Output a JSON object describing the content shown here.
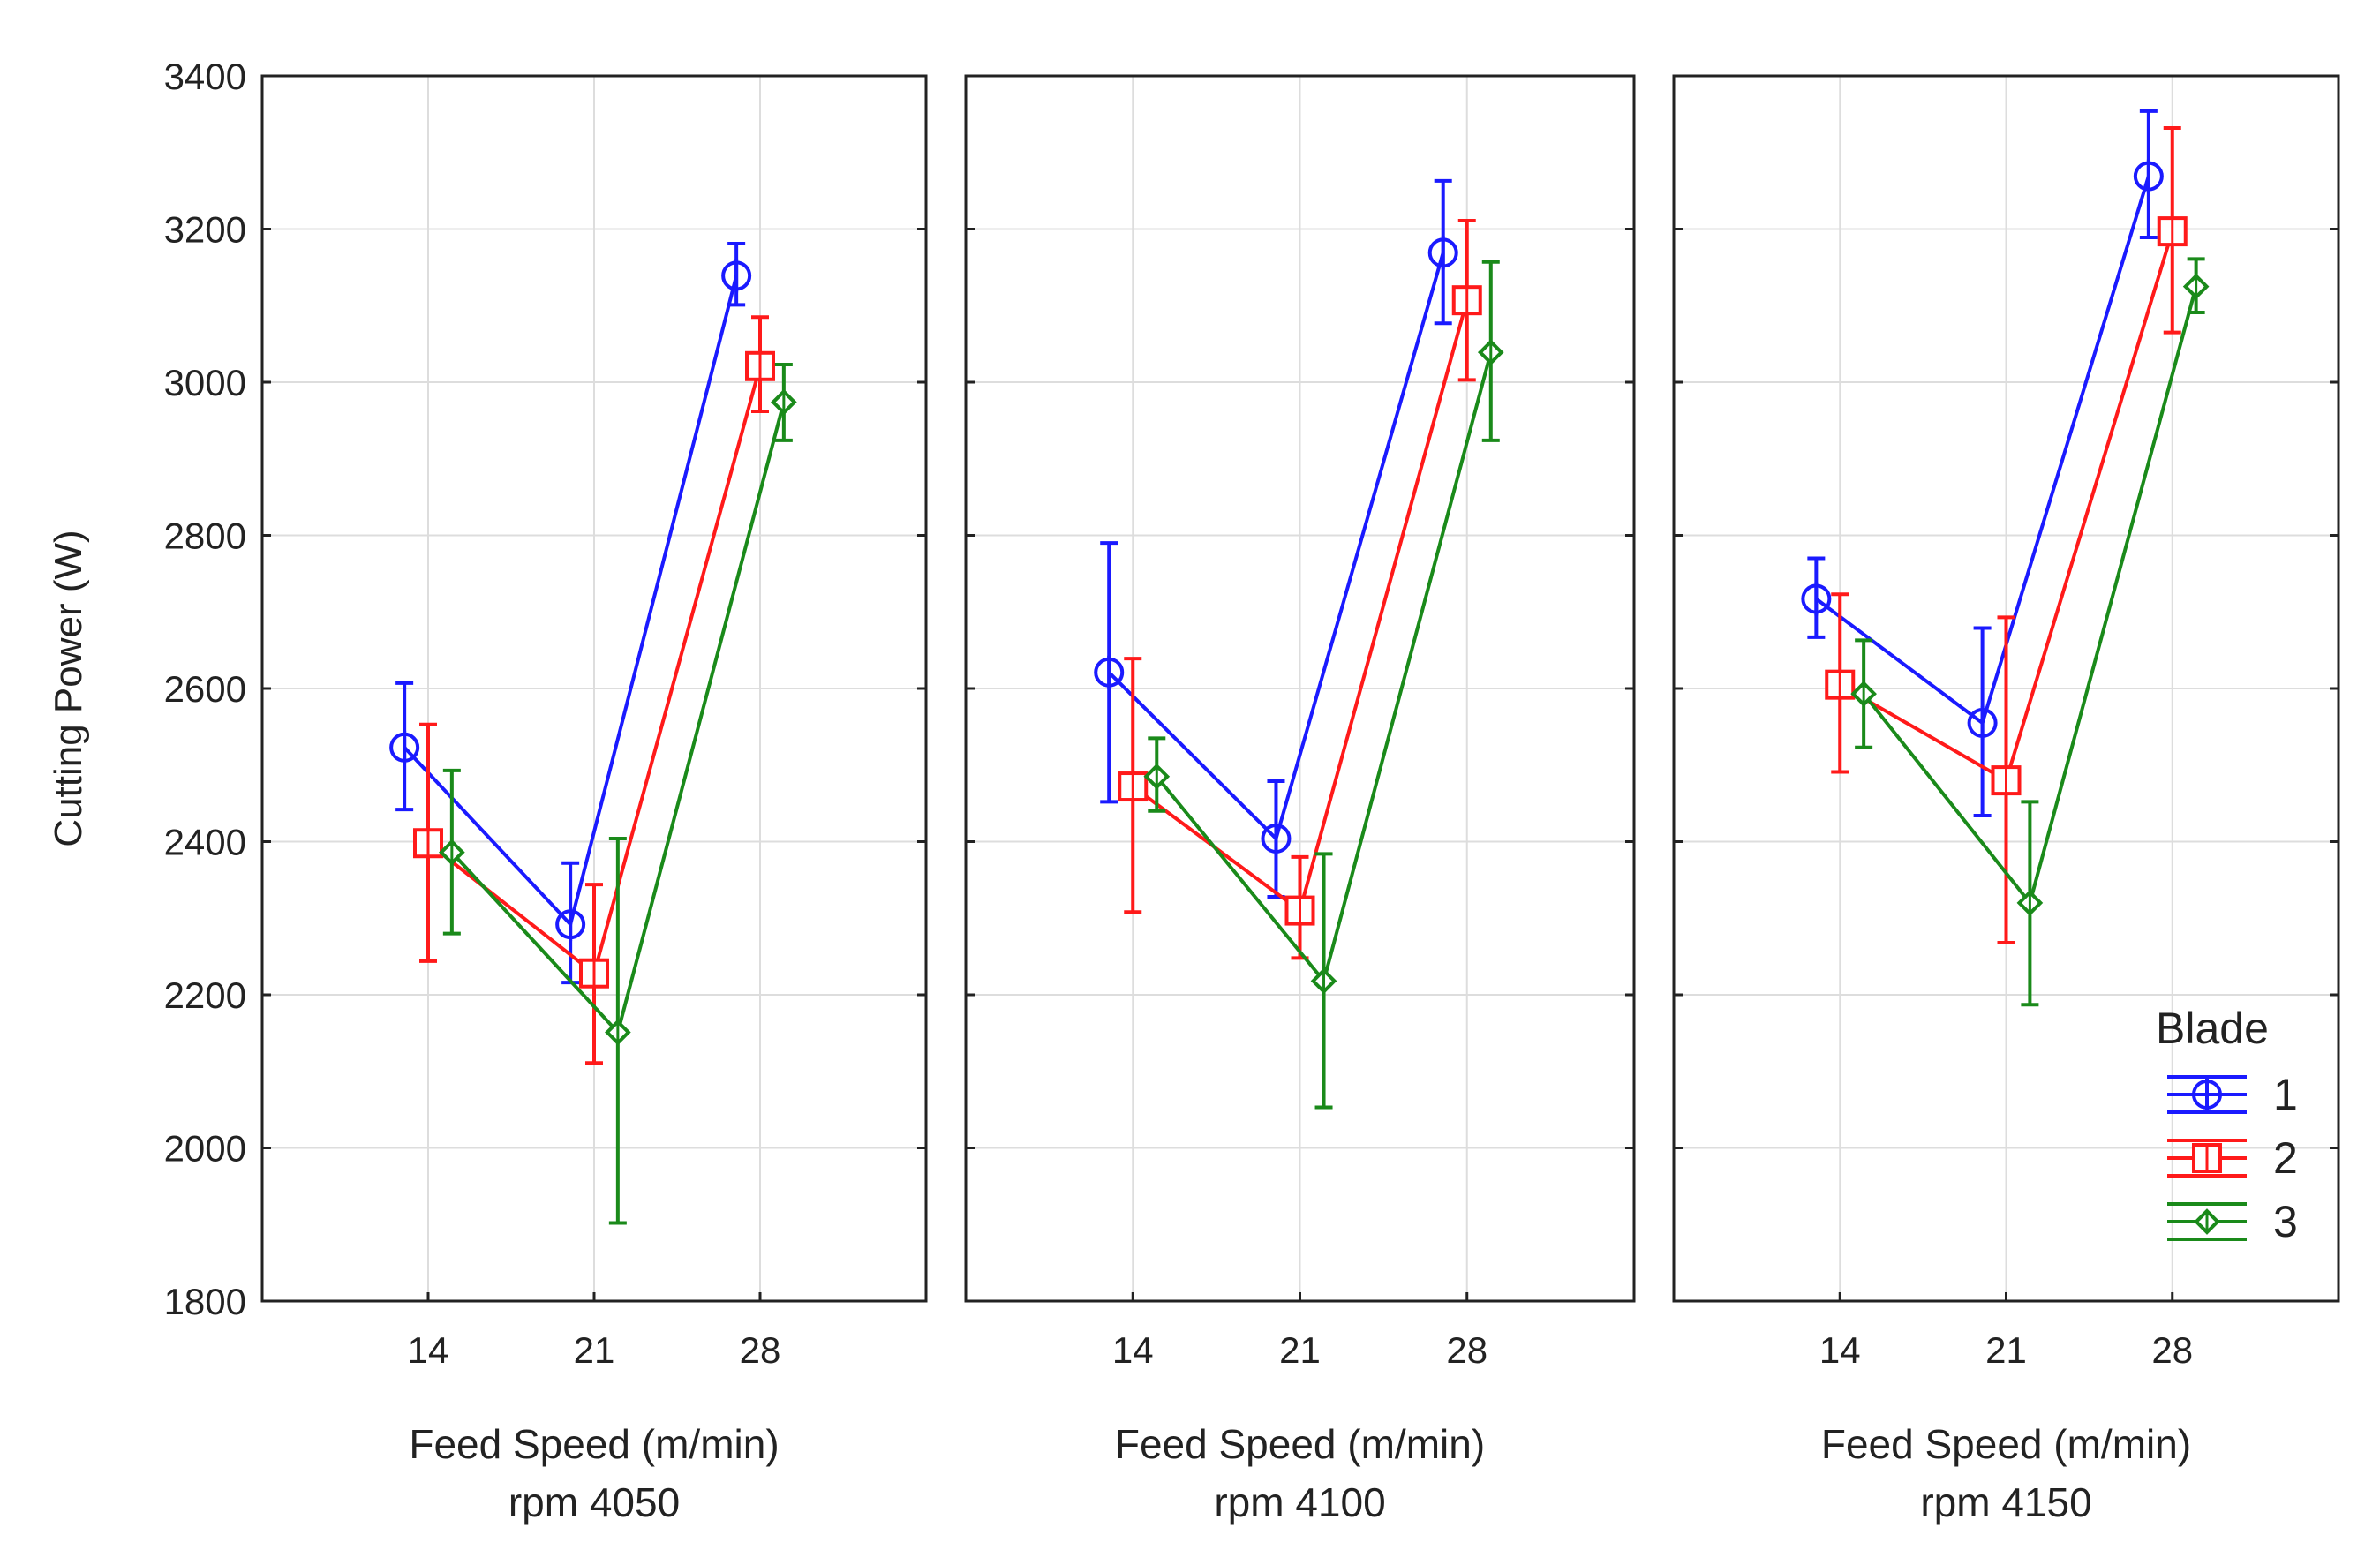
{
  "chart_data": {
    "type": "line",
    "ylabel": "Cutting Power (W)",
    "ylim": [
      1800,
      3400
    ],
    "yticks": [
      1800,
      2000,
      2200,
      2400,
      2600,
      2800,
      3000,
      3200,
      3400
    ],
    "xlim": [
      7,
      35
    ],
    "x": [
      14,
      21,
      28
    ],
    "xtick_labels": [
      "14",
      "21",
      "28"
    ],
    "grid": true,
    "legend": {
      "title": "Blade",
      "placement": "bottom-right",
      "entries": [
        "1",
        "2",
        "3"
      ]
    },
    "series_styles": [
      {
        "name": "1",
        "color": "#1a1aff",
        "marker": "circle",
        "x_offset": -1
      },
      {
        "name": "2",
        "color": "#ff1a1a",
        "marker": "square",
        "x_offset": 0
      },
      {
        "name": "3",
        "color": "#1a8a1a",
        "marker": "diamond",
        "x_offset": 1
      }
    ],
    "panels": [
      {
        "xlabel": "Feed Speed (m/min)",
        "subtitle": "rpm 4050",
        "series": [
          {
            "name": "1",
            "values": [
              2523,
              2292,
              3139
            ],
            "upper": [
              2607,
              2372,
              3181
            ],
            "lower": [
              2442,
              2216,
              3101
            ]
          },
          {
            "name": "2",
            "values": [
              2398,
              2228,
              3021
            ],
            "upper": [
              2553,
              2344,
              3085
            ],
            "lower": [
              2244,
              2111,
              2962
            ]
          },
          {
            "name": "3",
            "values": [
              2386,
              2151,
              2974
            ],
            "upper": [
              2493,
              2404,
              3023
            ],
            "lower": [
              2280,
              1902,
              2924
            ]
          }
        ]
      },
      {
        "xlabel": "Feed Speed (m/min)",
        "subtitle": "rpm 4100",
        "series": [
          {
            "name": "1",
            "values": [
              2621,
              2404,
              3169
            ],
            "upper": [
              2790,
              2479,
              3263
            ],
            "lower": [
              2452,
              2328,
              3077
            ]
          },
          {
            "name": "2",
            "values": [
              2472,
              2310,
              3107
            ],
            "upper": [
              2639,
              2380,
              3211
            ],
            "lower": [
              2308,
              2248,
              3003
            ]
          },
          {
            "name": "3",
            "values": [
              2485,
              2218,
              3039
            ],
            "upper": [
              2535,
              2384,
              3157
            ],
            "lower": [
              2440,
              2053,
              2924
            ]
          }
        ]
      },
      {
        "xlabel": "Feed Speed (m/min)",
        "subtitle": "rpm 4150",
        "series": [
          {
            "name": "1",
            "values": [
              2717,
              2555,
              3269
            ],
            "upper": [
              2770,
              2679,
              3354
            ],
            "lower": [
              2667,
              2434,
              3189
            ]
          },
          {
            "name": "2",
            "values": [
              2605,
              2480,
              3197
            ],
            "upper": [
              2723,
              2693,
              3332
            ],
            "lower": [
              2491,
              2268,
              3065
            ]
          },
          {
            "name": "3",
            "values": [
              2593,
              2320,
              3125
            ],
            "upper": [
              2663,
              2452,
              3161
            ],
            "lower": [
              2523,
              2187,
              3091
            ]
          }
        ]
      }
    ]
  }
}
